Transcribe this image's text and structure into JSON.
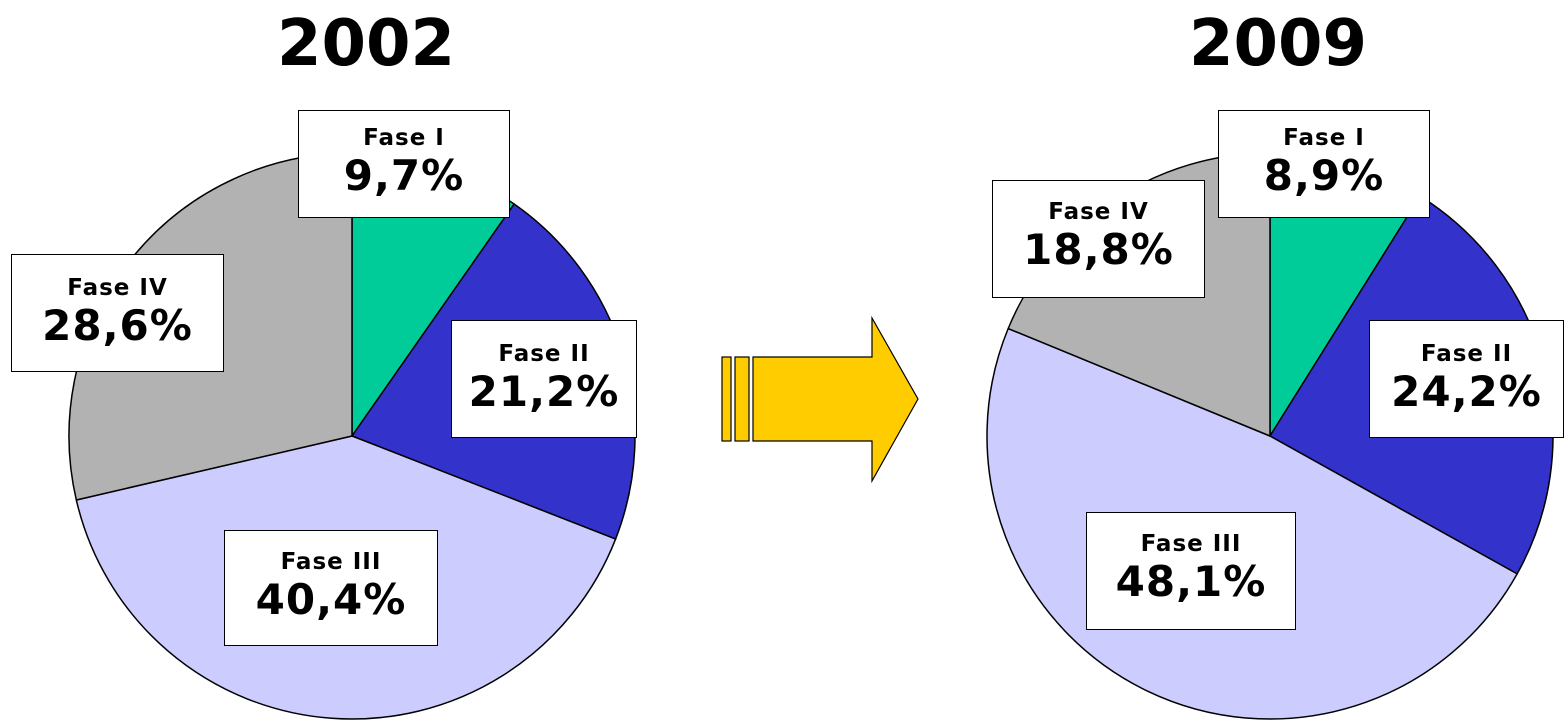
{
  "chart_data": [
    {
      "type": "pie",
      "title": "2002",
      "categories": [
        "Fase I",
        "Fase II",
        "Fase III",
        "Fase IV"
      ],
      "values": [
        9.7,
        21.2,
        40.4,
        28.6
      ],
      "value_labels": [
        "9,7%",
        "21,2%",
        "40,4%",
        "28,6%"
      ],
      "colors": [
        "#00CC99",
        "#3333CC",
        "#CCCCFF",
        "#B2B2B2"
      ]
    },
    {
      "type": "pie",
      "title": "2009",
      "categories": [
        "Fase I",
        "Fase II",
        "Fase III",
        "Fase IV"
      ],
      "values": [
        8.9,
        24.2,
        48.1,
        18.8
      ],
      "value_labels": [
        "8,9%",
        "24,2%",
        "48,1%",
        "18,8%"
      ],
      "colors": [
        "#00CC99",
        "#3333CC",
        "#CCCCFF",
        "#B2B2B2"
      ]
    }
  ],
  "arrow": {
    "color": "#FFCC00",
    "icon": "right-arrow-icon"
  }
}
